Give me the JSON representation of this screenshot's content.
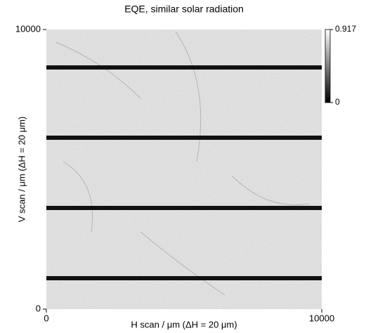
{
  "chart_data": {
    "type": "heatmap",
    "title": "EQE, similar solar radiation",
    "xlabel": "H scan / μm (ΔH = 20 μm)",
    "ylabel": "V scan / μm (ΔH = 20 μm)",
    "xlim": [
      0,
      10000
    ],
    "xticks": [
      0,
      10000
    ],
    "ylim": [
      0,
      10000
    ],
    "yticks": [
      0,
      10000
    ],
    "colorbar": {
      "lim": [
        0,
        0.917
      ],
      "ticks": [
        0,
        0.917
      ],
      "colors": [
        "#000000",
        "#ffffff"
      ]
    }
  }
}
